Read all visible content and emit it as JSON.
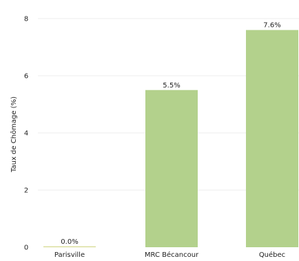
{
  "chart_data": {
    "type": "bar",
    "title": "",
    "xlabel": "",
    "ylabel": "Taux de Chômage (%)",
    "categories": [
      "Parisville",
      "MRC Bécancour",
      "Québec"
    ],
    "values": [
      0.0,
      5.5,
      7.6
    ],
    "data_labels": [
      "0.0%",
      "5.5%",
      "7.6%"
    ],
    "ylim": [
      0,
      8
    ],
    "yticks": [
      0,
      2,
      4,
      6,
      8
    ],
    "grid": true,
    "bar_color": "#b3d18c",
    "zero_bar_color": "#d4d88a"
  }
}
